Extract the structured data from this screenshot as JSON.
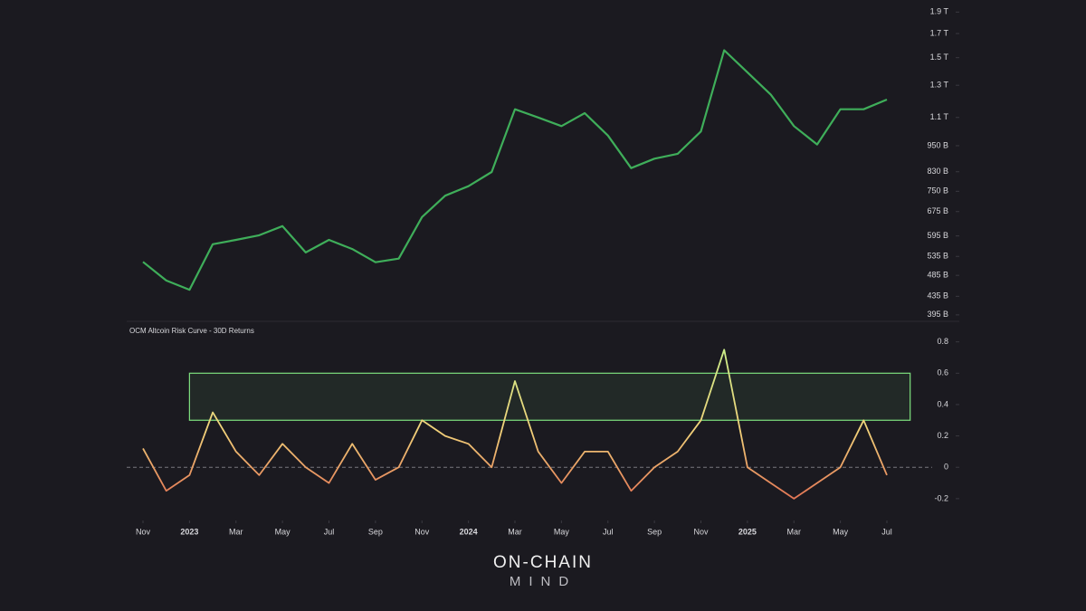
{
  "chart_data": [
    {
      "type": "line",
      "log_scale": true,
      "color": "#3fae5a",
      "x": [
        "2022-11",
        "2022-12",
        "2023-01",
        "2023-02",
        "2023-03",
        "2023-04",
        "2023-05",
        "2023-06",
        "2023-07",
        "2023-08",
        "2023-09",
        "2023-10",
        "2023-11",
        "2023-12",
        "2024-01",
        "2024-02",
        "2024-03",
        "2024-04",
        "2024-05",
        "2024-06",
        "2024-07",
        "2024-08",
        "2024-09",
        "2024-10",
        "2024-11",
        "2024-12",
        "2025-01",
        "2025-02",
        "2025-03",
        "2025-04",
        "2025-05",
        "2025-06",
        "2025-07"
      ],
      "values": [
        520,
        472,
        450,
        570,
        583,
        597,
        626,
        546,
        583,
        556,
        519,
        529,
        656,
        733,
        770,
        829,
        1148,
        1100,
        1052,
        1125,
        1001,
        846,
        888,
        911,
        1023,
        1559,
        1390,
        1239,
        1052,
        956,
        1148,
        1148,
        1207
      ],
      "ylim": [
        382,
        1976
      ],
      "yticks": [
        {
          "value": 395,
          "label": "395 B"
        },
        {
          "value": 435,
          "label": "435 B"
        },
        {
          "value": 485,
          "label": "485 B"
        },
        {
          "value": 535,
          "label": "535 B"
        },
        {
          "value": 595,
          "label": "595 B"
        },
        {
          "value": 675,
          "label": "675 B"
        },
        {
          "value": 750,
          "label": "750 B"
        },
        {
          "value": 830,
          "label": "830 B"
        },
        {
          "value": 950,
          "label": "950 B"
        },
        {
          "value": 1100,
          "label": "1.1 T"
        },
        {
          "value": 1300,
          "label": "1.3 T"
        },
        {
          "value": 1500,
          "label": "1.5 T"
        },
        {
          "value": 1700,
          "label": "1.7 T"
        },
        {
          "value": 1900,
          "label": "1.9 T"
        }
      ]
    },
    {
      "type": "line",
      "title": "OCM Altcoin Risk Curve - 30D Returns",
      "x": [
        "2022-11",
        "2022-12",
        "2023-01",
        "2023-02",
        "2023-03",
        "2023-04",
        "2023-05",
        "2023-06",
        "2023-07",
        "2023-08",
        "2023-09",
        "2023-10",
        "2023-11",
        "2023-12",
        "2024-01",
        "2024-02",
        "2024-03",
        "2024-04",
        "2024-05",
        "2024-06",
        "2024-07",
        "2024-08",
        "2024-09",
        "2024-10",
        "2024-11",
        "2024-12",
        "2025-01",
        "2025-02",
        "2025-03",
        "2025-04",
        "2025-05",
        "2025-06",
        "2025-07"
      ],
      "values": [
        0.12,
        -0.15,
        -0.05,
        0.35,
        0.1,
        -0.05,
        0.15,
        0.0,
        -0.1,
        0.15,
        -0.08,
        0.0,
        0.3,
        0.2,
        0.15,
        0.0,
        0.55,
        0.1,
        -0.1,
        0.1,
        0.1,
        -0.15,
        0.0,
        0.1,
        0.3,
        0.75,
        0.0,
        -0.1,
        -0.2,
        -0.1,
        0.0,
        0.3,
        -0.05
      ],
      "colors": {
        "low": "#e0674f",
        "mid": "#f2d27a",
        "high": "#c4f28c"
      },
      "ylim": [
        -0.27,
        0.85
      ],
      "yticks": [
        -0.2,
        0,
        0.2,
        0.4,
        0.6,
        0.8
      ],
      "zero_line": true,
      "zone": {
        "x": [
          "2023-01",
          "2025-08"
        ],
        "y": [
          0.3,
          0.6
        ],
        "color": "#7ee07e"
      },
      "xticks": [
        {
          "value": "2022-11",
          "label": "Nov"
        },
        {
          "value": "2023-01",
          "label": "2023"
        },
        {
          "value": "2023-03",
          "label": "Mar"
        },
        {
          "value": "2023-05",
          "label": "May"
        },
        {
          "value": "2023-07",
          "label": "Jul"
        },
        {
          "value": "2023-09",
          "label": "Sep"
        },
        {
          "value": "2023-11",
          "label": "Nov"
        },
        {
          "value": "2024-01",
          "label": "2024"
        },
        {
          "value": "2024-03",
          "label": "Mar"
        },
        {
          "value": "2024-05",
          "label": "May"
        },
        {
          "value": "2024-07",
          "label": "Jul"
        },
        {
          "value": "2024-09",
          "label": "Sep"
        },
        {
          "value": "2024-11",
          "label": "Nov"
        },
        {
          "value": "2025-01",
          "label": "2025"
        },
        {
          "value": "2025-03",
          "label": "Mar"
        },
        {
          "value": "2025-05",
          "label": "May"
        },
        {
          "value": "2025-07",
          "label": "Jul"
        }
      ]
    }
  ],
  "logo": {
    "line1": "ON-CHAIN",
    "line2": "MIND"
  }
}
